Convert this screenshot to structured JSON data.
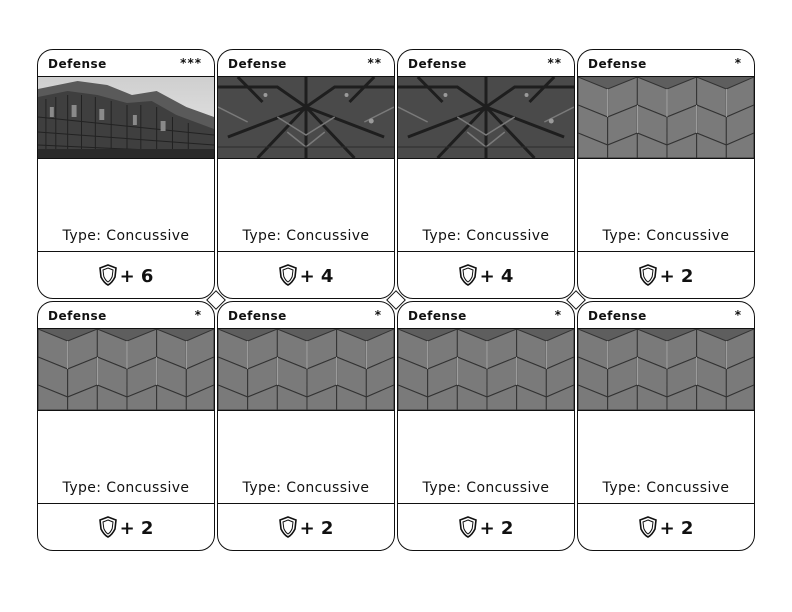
{
  "sheet": {
    "cards": [
      {
        "title": "Defense",
        "rank": "***",
        "art": "city-ruins",
        "type_line": "Type: Concussive",
        "defense_value": "+ 6"
      },
      {
        "title": "Defense",
        "rank": "**",
        "art": "ornate-panel",
        "type_line": "Type: Concussive",
        "defense_value": "+ 4"
      },
      {
        "title": "Defense",
        "rank": "**",
        "art": "ornate-panel",
        "type_line": "Type: Concussive",
        "defense_value": "+ 4"
      },
      {
        "title": "Defense",
        "rank": "*",
        "art": "hex-plating",
        "type_line": "Type: Concussive",
        "defense_value": "+ 2"
      },
      {
        "title": "Defense",
        "rank": "*",
        "art": "hex-plating",
        "type_line": "Type: Concussive",
        "defense_value": "+ 2"
      },
      {
        "title": "Defense",
        "rank": "*",
        "art": "hex-plating",
        "type_line": "Type: Concussive",
        "defense_value": "+ 2"
      },
      {
        "title": "Defense",
        "rank": "*",
        "art": "hex-plating",
        "type_line": "Type: Concussive",
        "defense_value": "+ 2"
      },
      {
        "title": "Defense",
        "rank": "*",
        "art": "hex-plating",
        "type_line": "Type: Concussive",
        "defense_value": "+ 2"
      }
    ],
    "icons": {
      "stat": "shield-icon",
      "separator": "diamond-icon"
    },
    "colors": {
      "ink": "#111111",
      "paper": "#ffffff",
      "art_dark": "#3a3a3a",
      "art_mid": "#6a6a6a",
      "art_light": "#bdbdbd"
    }
  }
}
